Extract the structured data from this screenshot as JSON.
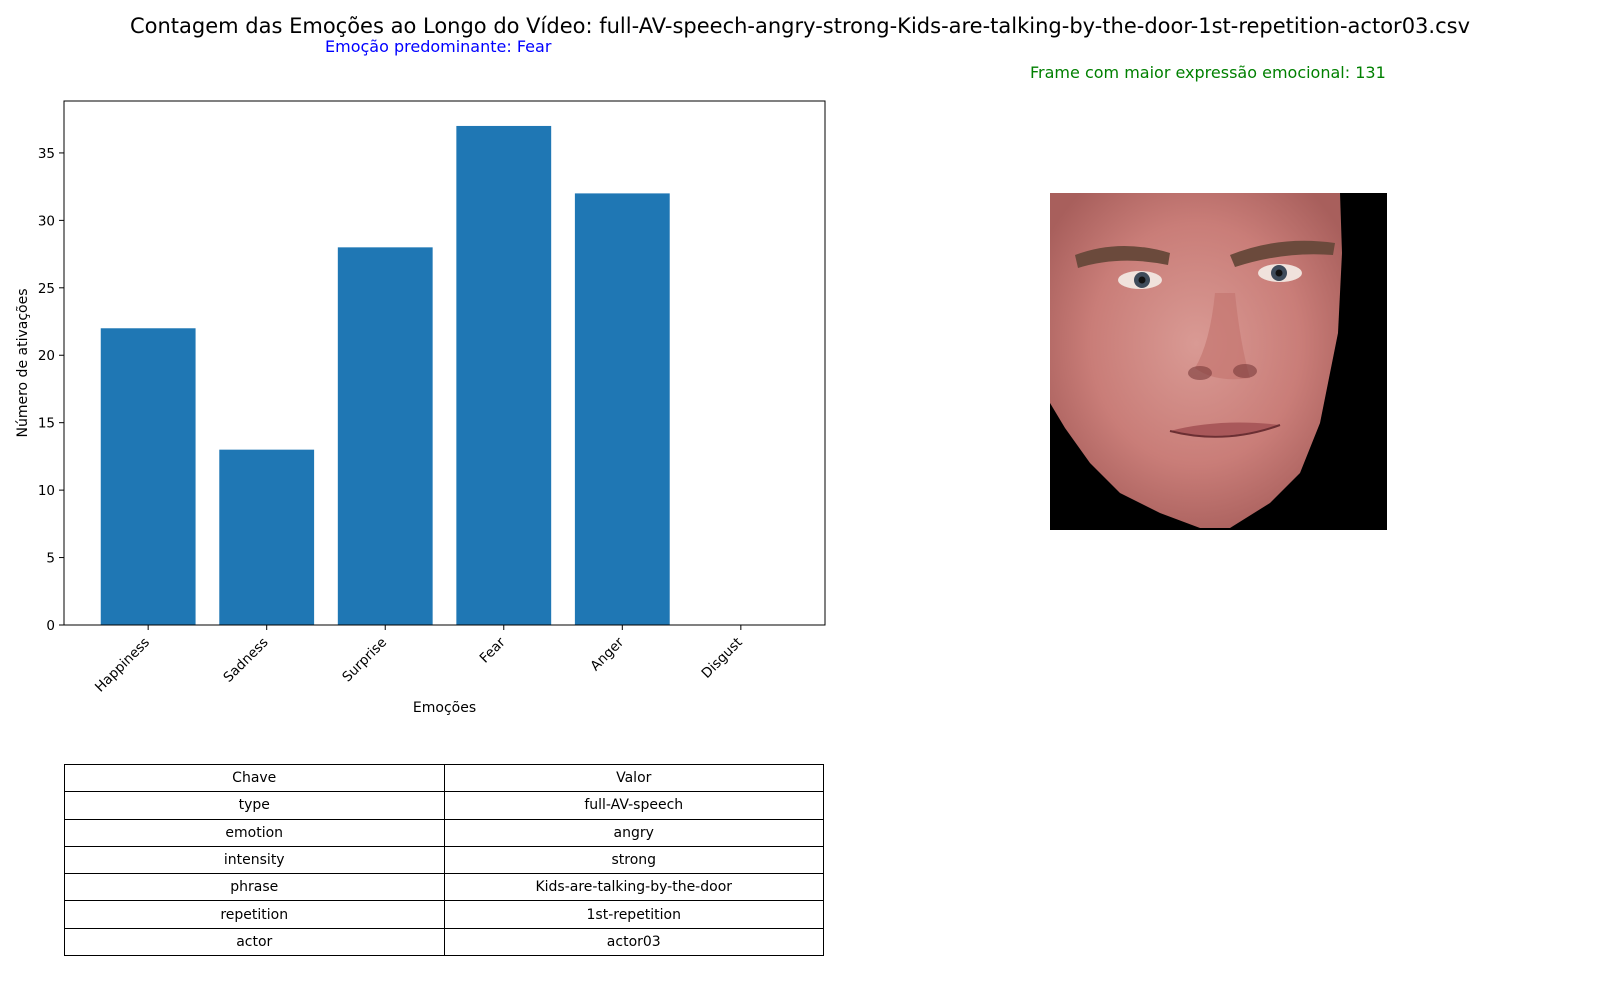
{
  "title": "Contagem das Emoções ao Longo do Vídeo: full-AV-speech-angry-strong-Kids-are-talking-by-the-door-1st-repetition-actor03.csv",
  "predominant_label": "Emoção predominante: Fear",
  "frame_label": "Frame com maior expressão emocional: 131",
  "colors": {
    "bar": "#1f77b4",
    "predominant": "#0000ff",
    "frame": "#008000"
  },
  "chart_data": {
    "type": "bar",
    "categories": [
      "Happiness",
      "Sadness",
      "Surprise",
      "Fear",
      "Anger",
      "Disgust"
    ],
    "values": [
      22,
      13,
      28,
      37,
      32,
      0
    ],
    "xlabel": "Emoções",
    "ylabel": "Número de ativações",
    "ylim": [
      0,
      38.85
    ],
    "yticks": [
      0,
      5,
      10,
      15,
      20,
      25,
      30,
      35
    ],
    "grid": false
  },
  "table": {
    "headers": [
      "Chave",
      "Valor"
    ],
    "rows": [
      [
        "type",
        "full-AV-speech"
      ],
      [
        "emotion",
        "angry"
      ],
      [
        "intensity",
        "strong"
      ],
      [
        "phrase",
        "Kids-are-talking-by-the-door"
      ],
      [
        "repetition",
        "1st-repetition"
      ],
      [
        "actor",
        "actor03"
      ]
    ]
  }
}
